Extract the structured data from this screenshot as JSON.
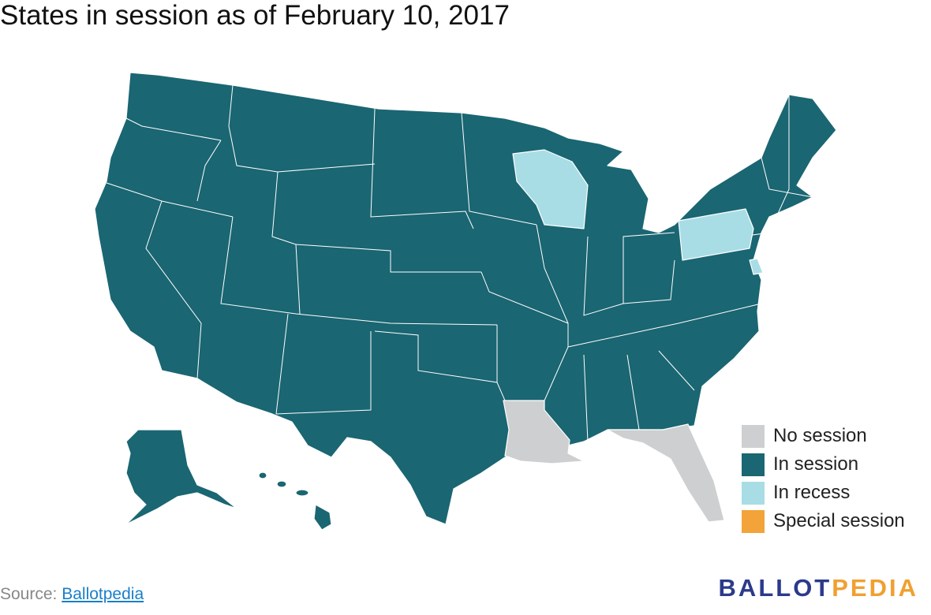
{
  "title": "States in session as of February 10, 2017",
  "legend": [
    {
      "label": "No session",
      "color": "#cdcfd0"
    },
    {
      "label": "In session",
      "color": "#1a6672"
    },
    {
      "label": "In recess",
      "color": "#a8dde6"
    },
    {
      "label": "Special session",
      "color": "#f2a33a"
    }
  ],
  "source": {
    "prefix": "Source:",
    "link": "Ballotpedia"
  },
  "logo": {
    "first": "BALLOT",
    "second": "PEDIA"
  }
}
